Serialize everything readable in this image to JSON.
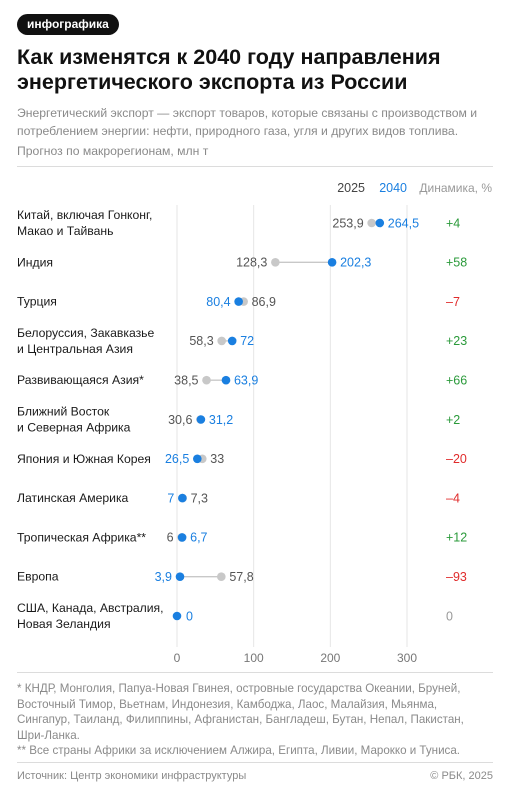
{
  "badge": "инфографика",
  "title": "Как изменятся к 2040 году направления энергетического экспорта из России",
  "subtitle": "Энергетический экспорт — экспорт товаров, которые связаны с производством и потреблением энергии: нефти, природного газа, угля и других видов топлива.",
  "note": "Прогноз по макрорегионам, млн т",
  "legend": {
    "y2025": "2025",
    "y2040": "2040",
    "dynamics": "Динамика, %"
  },
  "colors": {
    "y2025": "#c8c8c8",
    "y2040": "#1a7fe0",
    "positive": "#2a9a3a",
    "negative": "#e02b2b",
    "neutral": "#999999"
  },
  "chart_data": {
    "type": "dot",
    "x_ticks": [
      "0",
      "100",
      "200",
      "300"
    ],
    "xlim": [
      0,
      300
    ],
    "series_names": [
      "2025",
      "2040"
    ],
    "rows": [
      {
        "label": [
          "Китай, включая Гонконг,",
          "Макао и Тайвань"
        ],
        "v2025": 253.9,
        "v2040": 264.5,
        "label2025": "253,9",
        "label2040": "264,5",
        "dynamics": "+4"
      },
      {
        "label": [
          "Индия"
        ],
        "v2025": 128.3,
        "v2040": 202.3,
        "label2025": "128,3",
        "label2040": "202,3",
        "dynamics": "+58"
      },
      {
        "label": [
          "Турция"
        ],
        "v2025": 86.9,
        "v2040": 80.4,
        "label2025": "86,9",
        "label2040": "80,4",
        "dynamics": "–7"
      },
      {
        "label": [
          "Белоруссия, Закавказье",
          "и Центральная Азия"
        ],
        "v2025": 58.3,
        "v2040": 72,
        "label2025": "58,3",
        "label2040": "72",
        "dynamics": "+23"
      },
      {
        "label": [
          "Развивающаяся Азия*"
        ],
        "v2025": 38.5,
        "v2040": 63.9,
        "label2025": "38,5",
        "label2040": "63,9",
        "dynamics": "+66"
      },
      {
        "label": [
          "Ближний Восток",
          "и Северная Африка"
        ],
        "v2025": 30.6,
        "v2040": 31.2,
        "label2025": "30,6",
        "label2040": "31,2",
        "dynamics": "+2"
      },
      {
        "label": [
          "Япония и Южная Корея"
        ],
        "v2025": 33,
        "v2040": 26.5,
        "label2025": "33",
        "label2040": "26,5",
        "dynamics": "–20"
      },
      {
        "label": [
          "Латинская Америка"
        ],
        "v2025": 7.3,
        "v2040": 7,
        "label2025": "7,3",
        "label2040": "7",
        "dynamics": "–4"
      },
      {
        "label": [
          "Тропическая Африка**"
        ],
        "v2025": 6,
        "v2040": 6.7,
        "label2025": "6",
        "label2040": "6,7",
        "dynamics": "+12"
      },
      {
        "label": [
          "Европа"
        ],
        "v2025": 57.8,
        "v2040": 3.9,
        "label2025": "57,8",
        "label2040": "3,9",
        "dynamics": "–93"
      },
      {
        "label": [
          "США, Канада, Австралия,",
          "Новая Зеландия"
        ],
        "v2025": null,
        "v2040": 0,
        "label2025": "",
        "label2040": "0",
        "dynamics": "0"
      }
    ]
  },
  "footnotes": [
    "* КНДР, Монголия, Папуа-Новая Гвинея, островные государства Океании, Бруней,",
    "Восточный Тимор, Вьетнам, Индонезия, Камбоджа, Лаос, Малайзия, Мьянма,",
    "Сингапур, Таиланд, Филиппины, Афганистан, Бангладеш, Бутан, Непал, Пакистан,",
    "Шри-Ланка.",
    "** Все страны Африки за исключением Алжира, Египта, Ливии, Марокко и Туниса."
  ],
  "source": "Источник: Центр экономики инфраструктуры",
  "copyright": "© РБК, 2025"
}
